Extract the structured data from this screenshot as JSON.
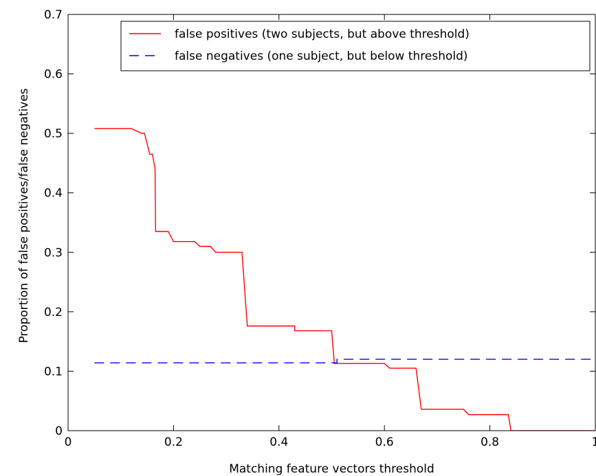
{
  "chart_data": {
    "type": "line",
    "xlabel": "Matching feature vectors threshold",
    "ylabel": "Proportion of false positives/false negatives",
    "xlim": [
      0,
      1
    ],
    "ylim": [
      0,
      0.7
    ],
    "xticks": [
      0,
      0.2,
      0.4,
      0.6,
      0.8,
      1
    ],
    "xtick_labels": [
      "0",
      "0.2",
      "0.4",
      "0.6",
      "0.8",
      "1"
    ],
    "yticks": [
      0,
      0.1,
      0.2,
      0.3,
      0.4,
      0.5,
      0.6,
      0.7
    ],
    "ytick_labels": [
      "0",
      "0.1",
      "0.2",
      "0.3",
      "0.4",
      "0.5",
      "0.6",
      "0.7"
    ],
    "grid": false,
    "legend_position": "top-right",
    "series": [
      {
        "name": "false positives (two subjects, but above threshold)",
        "color": "#ff0000",
        "style": "solid",
        "x": [
          0.05,
          0.12,
          0.14,
          0.145,
          0.155,
          0.16,
          0.165,
          0.166,
          0.19,
          0.2,
          0.24,
          0.25,
          0.27,
          0.28,
          0.33,
          0.33,
          0.34,
          0.34,
          0.43,
          0.43,
          0.5,
          0.505,
          0.505,
          0.6,
          0.61,
          0.66,
          0.665,
          0.67,
          0.75,
          0.76,
          0.835,
          0.84,
          1.0
        ],
        "y": [
          0.508,
          0.508,
          0.5,
          0.5,
          0.465,
          0.465,
          0.44,
          0.335,
          0.335,
          0.318,
          0.318,
          0.31,
          0.31,
          0.3,
          0.3,
          0.298,
          0.176,
          0.176,
          0.176,
          0.168,
          0.168,
          0.113,
          0.113,
          0.113,
          0.105,
          0.105,
          0.07,
          0.036,
          0.036,
          0.027,
          0.027,
          0.0,
          0.0
        ]
      },
      {
        "name": "false negatives (one subject, but below threshold)",
        "color": "#0000ff",
        "style": "dashed",
        "x": [
          0.05,
          0.51,
          0.51,
          1.0
        ],
        "y": [
          0.114,
          0.114,
          0.12,
          0.12
        ]
      }
    ]
  }
}
